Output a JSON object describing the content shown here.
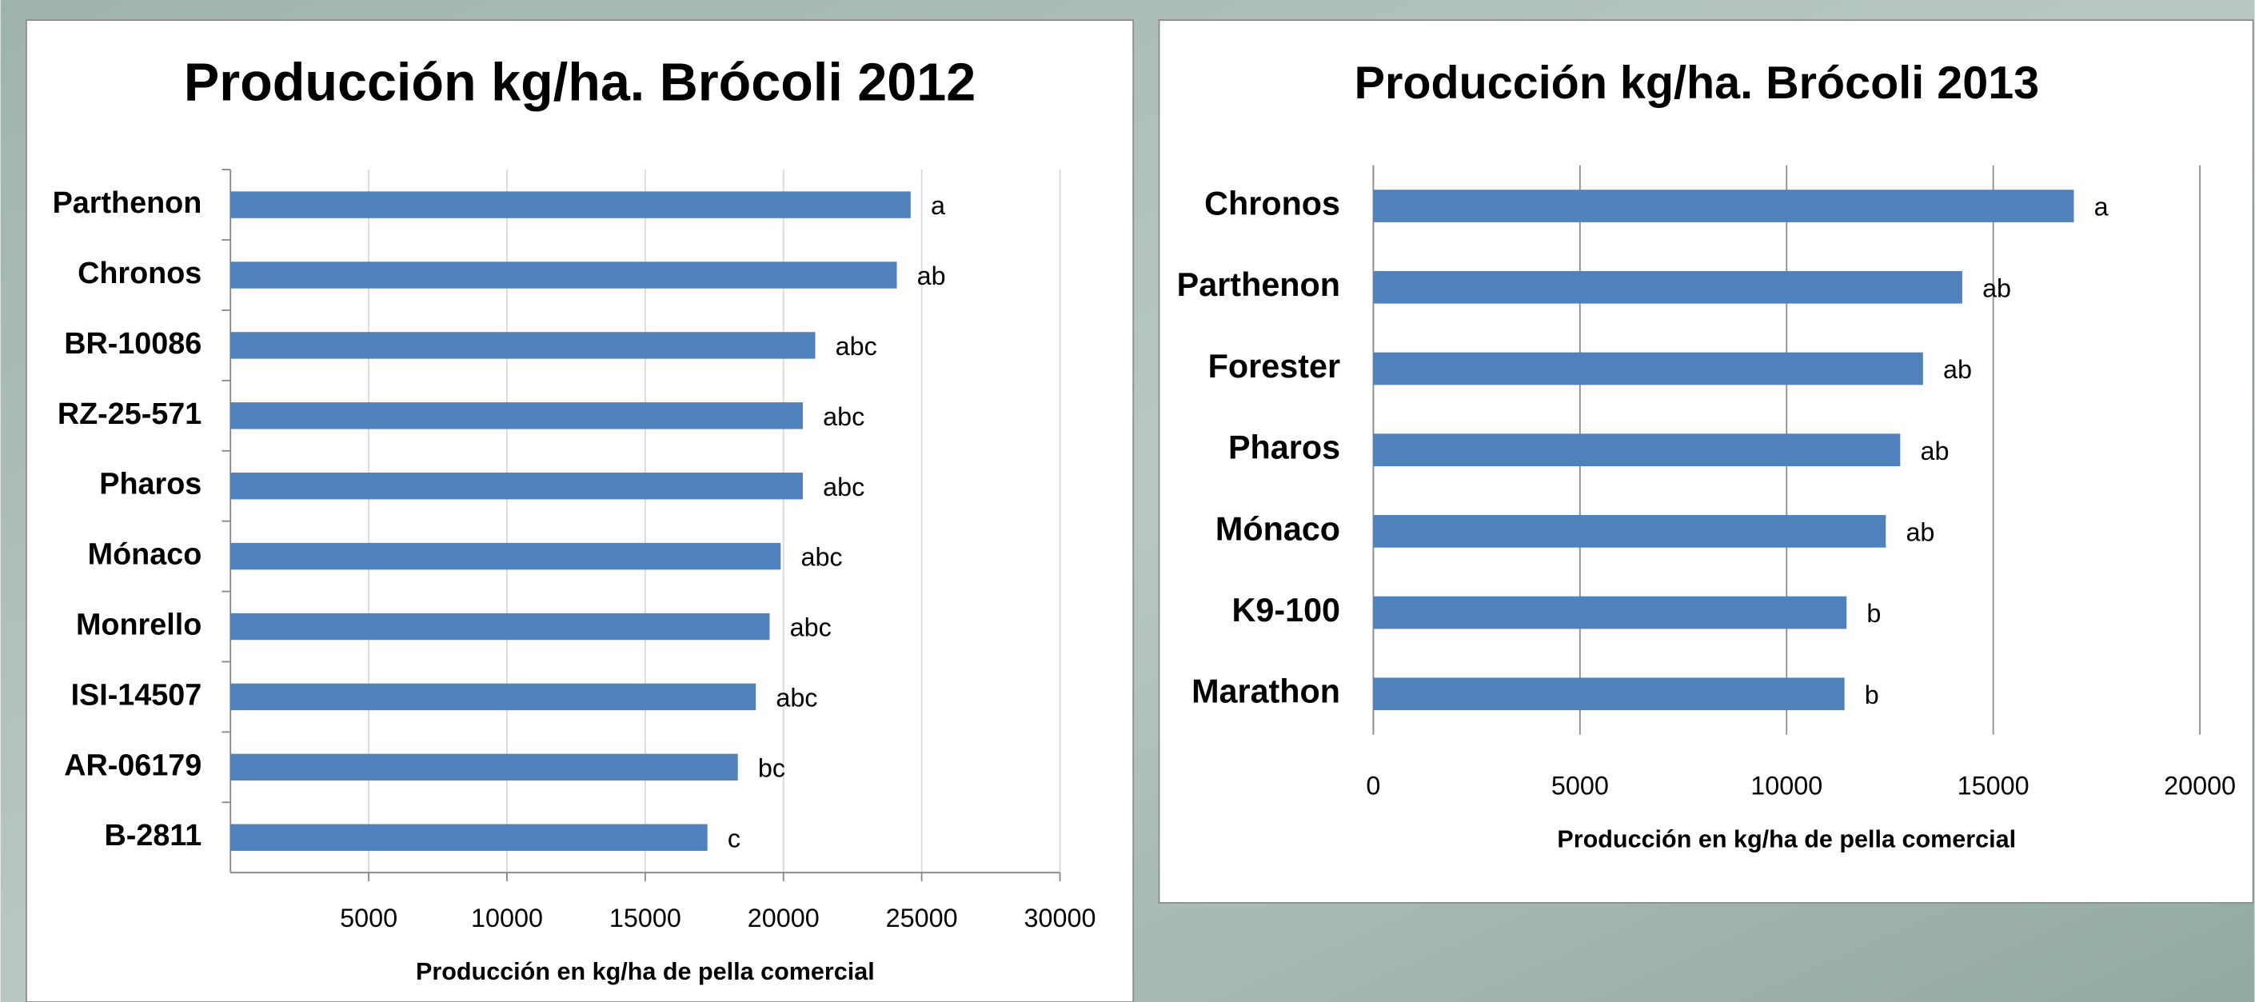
{
  "chart_data": [
    {
      "type": "hbar",
      "title": "Producción kg/ha. Brócoli 2012",
      "categories": [
        "Parthenon",
        "Chronos",
        "BR-10086",
        "RZ-25-571",
        "Pharos",
        "Mónaco",
        "Monrello",
        "ISI-14507",
        "AR-06179",
        "B-2811"
      ],
      "values": [
        24600,
        24100,
        21150,
        20700,
        20700,
        19900,
        19500,
        19000,
        18350,
        17250
      ],
      "annotations": [
        "a",
        "ab",
        "abc",
        "abc",
        "abc",
        "abc",
        "abc",
        "abc",
        "bc",
        "c"
      ],
      "color": "#4f81bd",
      "xlim": [
        0,
        30000
      ],
      "xticks": [
        5000,
        10000,
        15000,
        20000,
        25000,
        30000
      ],
      "x_label": "Producción en kg/ha de pella comercial",
      "grid": true
    },
    {
      "type": "hbar",
      "title": "Producción kg/ha. Brócoli 2013",
      "categories": [
        "Chronos",
        "Parthenon",
        "Forester",
        "Pharos",
        "Mónaco",
        "K9-100",
        "Marathon"
      ],
      "values": [
        16950,
        14250,
        13300,
        12750,
        12400,
        11450,
        11400
      ],
      "annotations": [
        "a",
        "ab",
        "ab",
        "ab",
        "ab",
        "b",
        "b"
      ],
      "color": "#4f81bd",
      "xlim": [
        0,
        20000
      ],
      "xticks": [
        0,
        5000,
        10000,
        15000,
        20000
      ],
      "x_label": "Producción en kg/ha de pella comercial",
      "grid": true
    }
  ]
}
